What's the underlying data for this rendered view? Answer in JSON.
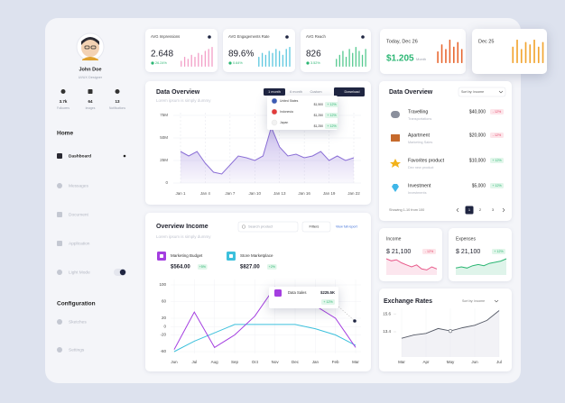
{
  "sidebar": {
    "profile": {
      "name": "John Doe",
      "role": "UI/UX Designer"
    },
    "stats": [
      {
        "value": "3.7k",
        "label": "Followers"
      },
      {
        "value": "64",
        "label": "Images"
      },
      {
        "value": "13",
        "label": "Notifications"
      }
    ],
    "home": {
      "heading": "Home",
      "items": [
        "Dashboard",
        "Messages",
        "Document",
        "Application",
        "Light Mode"
      ]
    },
    "configuration": {
      "heading": "Configuration",
      "items": [
        "Sketches",
        "Settings"
      ]
    }
  },
  "stat_cards": [
    {
      "title": "AVG Impressions",
      "value": "2.648",
      "change": "26.24%",
      "change_color": "#2bb673",
      "chart": {
        "type": "bar",
        "color": "#f3a0c8",
        "values": [
          3,
          5,
          4,
          6,
          5,
          7,
          6,
          8,
          9,
          10
        ]
      }
    },
    {
      "title": "AVG Engagements Rate",
      "value": "89.6%",
      "change": "0.64%",
      "change_color": "#2bb673",
      "chart": {
        "type": "bar",
        "color": "#5ec8e0",
        "values": [
          5,
          7,
          6,
          8,
          7,
          9,
          8,
          6,
          9,
          10
        ]
      }
    },
    {
      "title": "AVG Reach",
      "value": "826",
      "change": "3.52%",
      "change_color": "#2bb673",
      "chart": {
        "type": "bar",
        "color": "#54c98f",
        "values": [
          4,
          6,
          8,
          5,
          9,
          7,
          10,
          8,
          6,
          9
        ]
      }
    }
  ],
  "today_cards": [
    {
      "title": "Today, Dec 26",
      "value": "$1.205",
      "unit": "Month",
      "chart": {
        "type": "bar",
        "color": "#e8642c",
        "values": [
          5,
          8,
          6,
          10,
          7,
          9,
          6
        ]
      }
    },
    {
      "title": "Dec 25",
      "chart": {
        "type": "bar",
        "color": "#f2a530",
        "values": [
          7,
          10,
          6,
          9,
          8,
          10,
          7,
          9
        ]
      }
    }
  ],
  "data_overview": {
    "title": "Data Overview",
    "subtitle": "Lorem ipsum is simply dummy",
    "tabs": [
      "1 month",
      "6 month",
      "Custom"
    ],
    "download": "Download",
    "popup": [
      {
        "country": "United States",
        "amount": "$1,500",
        "change": "+ 12%"
      },
      {
        "country": "Indonesia",
        "amount": "$1,250",
        "change": "+ 12%"
      },
      {
        "country": "Japan",
        "amount": "$1,250",
        "change": "+ 12%"
      }
    ],
    "chart_data": {
      "type": "area",
      "color": "#8b6fd6",
      "grid": true,
      "x": [
        1,
        2,
        3,
        4,
        5,
        6,
        7,
        8,
        9,
        10,
        11,
        12,
        13,
        14,
        15,
        16,
        17,
        18,
        19,
        20,
        21,
        22
      ],
      "values": [
        35,
        30,
        35,
        22,
        12,
        10,
        20,
        30,
        28,
        25,
        30,
        62,
        40,
        30,
        32,
        28,
        30,
        35,
        25,
        30,
        25,
        28
      ],
      "xlim": [
        1,
        22
      ],
      "xticks": [
        {
          "value": 1,
          "label": "Jan 1"
        },
        {
          "value": 4,
          "label": "Jan 4"
        },
        {
          "value": 7,
          "label": "Jan 7"
        },
        {
          "value": 10,
          "label": "Jan 10"
        },
        {
          "value": 13,
          "label": "Jan 13"
        },
        {
          "value": 16,
          "label": "Jan 16"
        },
        {
          "value": 19,
          "label": "Jan 19"
        },
        {
          "value": 22,
          "label": "Jan 22"
        }
      ],
      "ylim": [
        0,
        75
      ],
      "yticks": [
        {
          "value": 75,
          "label": "75M"
        },
        {
          "value": 50,
          "label": "50M"
        },
        {
          "value": 25,
          "label": "25M"
        },
        0
      ]
    }
  },
  "overview_income": {
    "title": "Overview Income",
    "subtitle": "Lorem ipsum is simply dummy",
    "search": "Search product",
    "filters": "Filters",
    "report": "View full report",
    "tooltip": {
      "title": "Data Sales",
      "amount": "$225.5K",
      "change": "+ 12%"
    },
    "chart_data": {
      "type": "line",
      "grid": true,
      "categories": [
        "Jun",
        "Jul",
        "Aug",
        "Sep",
        "Oct",
        "Nov",
        "Dec",
        "Jan",
        "Feb",
        "Mar"
      ],
      "series": [
        {
          "name": "Marketing Budget",
          "amount": "$564.00",
          "change": "+5%",
          "color": "#a43ee0",
          "values": [
            -55,
            35,
            -50,
            -20,
            25,
            95,
            55,
            50,
            20,
            -50
          ]
        },
        {
          "name": "Store Marketplace",
          "amount": "$827.00",
          "change": "+2%",
          "color": "#3cc0dc",
          "values": [
            -60,
            -35,
            -15,
            5,
            5,
            5,
            5,
            -5,
            -20,
            -45
          ]
        }
      ],
      "ylim": [
        -60,
        100
      ],
      "yticks": [
        100,
        60,
        20,
        0,
        -20,
        -60
      ]
    }
  },
  "activity": {
    "title": "Data Overview",
    "sort": "Sort by: Income",
    "rows": [
      {
        "name": "Travelling",
        "category": "Transportations",
        "amount": "$40,000",
        "change": "- 12%"
      },
      {
        "name": "Apartment",
        "category": "Marketing Sales",
        "amount": "$20,000",
        "change": "- 12%"
      },
      {
        "name": "Favorites product",
        "category": "Dev new product",
        "amount": "$10,000",
        "change": "+ 12%"
      },
      {
        "name": "Investment",
        "category": "Investments",
        "amount": "$5,000",
        "change": "+ 12%"
      }
    ],
    "showing": "Showing 1-10 from 100",
    "pages": [
      "1",
      "2",
      "3"
    ]
  },
  "income": {
    "title": "Income",
    "value": "$ 21,100",
    "change": "- 12%",
    "chart": {
      "type": "area",
      "color": "#e85a8a",
      "values": [
        8,
        7,
        7.5,
        6,
        5,
        4,
        5,
        3,
        2.5,
        4,
        3
      ]
    }
  },
  "expenses": {
    "title": "Expenses",
    "value": "$ 21,100",
    "change": "+ 12%",
    "chart": {
      "type": "area",
      "color": "#2bb673",
      "values": [
        3,
        3.5,
        3,
        4,
        4.5,
        4,
        5,
        5.5,
        6,
        7
      ]
    }
  },
  "exchange_rates": {
    "title": "Exchange Rates",
    "sort": "Sort by: Income",
    "chart_data": {
      "type": "line",
      "color": "#555a66",
      "x": [
        0,
        1,
        2,
        3,
        4,
        5,
        6,
        7,
        8
      ],
      "values": [
        12.6,
        13.0,
        13.2,
        13.8,
        13.5,
        13.9,
        14.2,
        14.8,
        16.0
      ],
      "xlim": [
        0,
        8
      ],
      "xticks": [
        {
          "value": 0,
          "label": "Mar"
        },
        {
          "value": 2,
          "label": "Apr"
        },
        {
          "value": 4,
          "label": "May"
        },
        {
          "value": 6,
          "label": "Jun"
        },
        {
          "value": 8,
          "label": "Jul"
        }
      ],
      "ylim": [
        10.3,
        16.5
      ],
      "yticks": [
        15.6,
        13.4
      ]
    }
  }
}
